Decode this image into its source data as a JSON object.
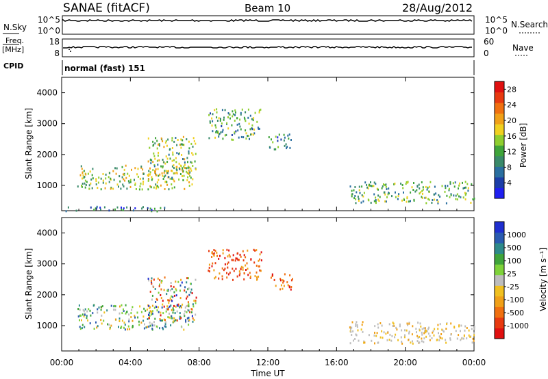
{
  "header": {
    "station": "SANAE (fitACF)",
    "beam": "Beam 10",
    "date": "28/Aug/2012"
  },
  "panels": {
    "nsky": {
      "left_label": "N.Sky",
      "left_ticks": [
        "10^5",
        "10^0"
      ],
      "right_ticks": [
        "10^5",
        "10^0"
      ],
      "right_label": "N.Search"
    },
    "freq": {
      "left_label": "Freq.",
      "left_unit": "[MHz]",
      "left_ticks": [
        "18",
        "8"
      ],
      "right_ticks": [
        "60",
        "0"
      ],
      "right_label": "Nave"
    },
    "cpid": {
      "label": "CPID",
      "value": "normal (fast) 151"
    }
  },
  "chart_data": [
    {
      "type": "heatmap",
      "name": "power",
      "xlabel": "Time UT",
      "ylabel": "Slant Range [km]",
      "x_ticks": [
        "00:00",
        "04:00",
        "08:00",
        "12:00",
        "16:00",
        "20:00",
        "00:00"
      ],
      "xlim_hours": [
        0,
        24
      ],
      "ylim": [
        180,
        4500
      ],
      "y_ticks": [
        1000,
        2000,
        3000,
        4000
      ],
      "colorbar": {
        "label": "Power [dB]",
        "ticks": [
          4,
          8,
          12,
          16,
          20,
          24,
          28
        ],
        "range": [
          0,
          30
        ],
        "colors": [
          "#1f1ff0",
          "#1c3ea8",
          "#2a6fa0",
          "#3a8a6a",
          "#3fa43a",
          "#8fce2f",
          "#f0d020",
          "#f0a018",
          "#f07010",
          "#e83a10",
          "#e01010"
        ]
      },
      "regions": [
        {
          "t0": 0.9,
          "t1": 7.6,
          "r0": 900,
          "r1": 1700,
          "level": 0.45
        },
        {
          "t0": 5.0,
          "t1": 7.8,
          "r0": 1200,
          "r1": 2600,
          "level": 0.4
        },
        {
          "t0": 8.5,
          "t1": 11.6,
          "r0": 2500,
          "r1": 3500,
          "level": 0.3
        },
        {
          "t0": 12.0,
          "t1": 13.4,
          "r0": 2200,
          "r1": 2700,
          "level": 0.2
        },
        {
          "t0": 16.7,
          "t1": 24.0,
          "r0": 450,
          "r1": 1150,
          "level": 0.35
        },
        {
          "t0": 0.2,
          "t1": 6.0,
          "r0": 190,
          "r1": 340,
          "level": 0.15
        }
      ]
    },
    {
      "type": "heatmap",
      "name": "velocity",
      "xlabel": "Time UT",
      "ylabel": "Slant Range [km]",
      "x_ticks": [
        "00:00",
        "04:00",
        "08:00",
        "12:00",
        "16:00",
        "20:00",
        "00:00"
      ],
      "xlim_hours": [
        0,
        24
      ],
      "ylim": [
        180,
        4500
      ],
      "y_ticks": [
        1000,
        2000,
        3000,
        4000
      ],
      "colorbar": {
        "label": "Velocity [m s⁻¹]",
        "ticks": [
          "1000",
          "500",
          "100",
          "25",
          "-25",
          "-100",
          "-500",
          "-1000"
        ],
        "colors": [
          "#1f2fd0",
          "#2a5bb0",
          "#2e8a8a",
          "#3fa43a",
          "#7ed23a",
          "#bdbdbd",
          "#f0c020",
          "#f0a018",
          "#f07010",
          "#e83a10",
          "#e01010"
        ]
      },
      "regions": [
        {
          "t0": 0.9,
          "t1": 7.6,
          "r0": 900,
          "r1": 1700,
          "v": "mixed"
        },
        {
          "t0": 5.0,
          "t1": 7.8,
          "r0": 1200,
          "r1": 2600,
          "v": "mixed-neg"
        },
        {
          "t0": 8.5,
          "t1": 11.6,
          "r0": 2500,
          "r1": 3500,
          "v": "negative"
        },
        {
          "t0": 12.0,
          "t1": 13.4,
          "r0": 2200,
          "r1": 2700,
          "v": "negative"
        },
        {
          "t0": 16.7,
          "t1": 24.0,
          "r0": 450,
          "r1": 1150,
          "v": "low"
        }
      ]
    }
  ]
}
